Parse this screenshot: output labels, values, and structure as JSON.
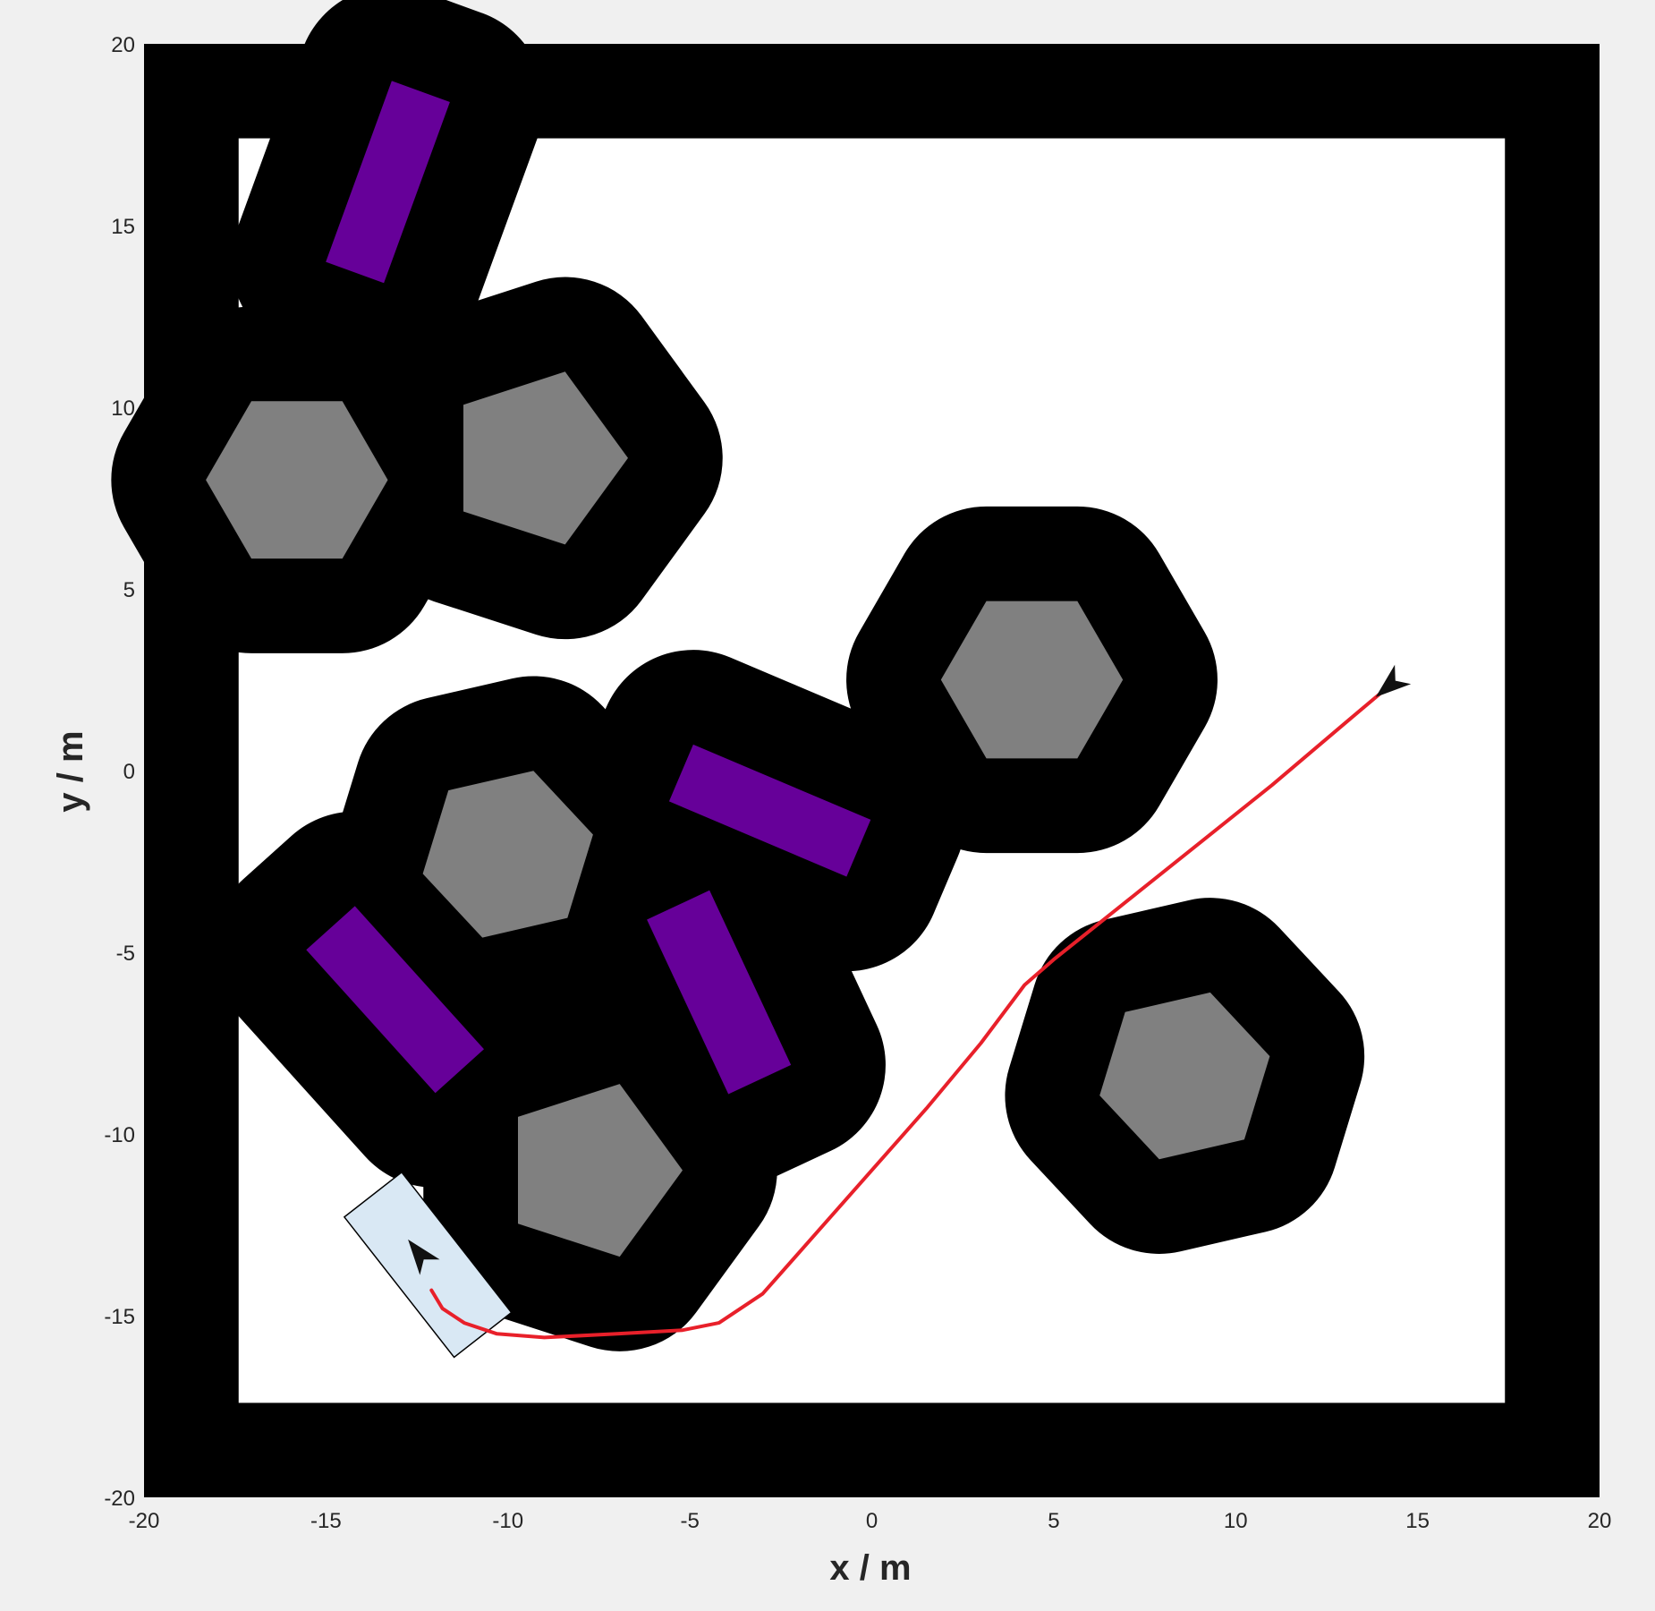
{
  "chart_data": {
    "type": "path-planning-map",
    "xlabel": "x / m",
    "ylabel": "y / m",
    "xlim": [
      -20,
      20
    ],
    "ylim": [
      -20,
      20
    ],
    "xticks": [
      -20,
      -15,
      -10,
      -5,
      0,
      5,
      10,
      15,
      20
    ],
    "yticks": [
      -20,
      -15,
      -10,
      -5,
      0,
      5,
      10,
      15,
      20
    ],
    "grid": false,
    "colors": {
      "inflated": "#000000",
      "polygon_obstacle": "#808080",
      "rect_obstacle": "#660099",
      "path": "#e8202a",
      "vehicle_fill": "#d9e8f4",
      "free_space": "#ffffff",
      "figure_bg": "#f0f0f0"
    },
    "walls": {
      "outer": [
        -20,
        20,
        -20,
        20
      ],
      "inner_free": [
        -17.4,
        17.4,
        -17.4,
        17.4
      ]
    },
    "hexagons": [
      {
        "cx": -15.8,
        "cy": 8.0,
        "r": 2.5,
        "rot": 0
      },
      {
        "cx": 4.4,
        "cy": 2.5,
        "r": 2.5,
        "rot": 0
      },
      {
        "cx": -10.0,
        "cy": -2.3,
        "r": 2.4,
        "rot": 13
      },
      {
        "cx": 8.6,
        "cy": -8.4,
        "r": 2.4,
        "rot": 13
      }
    ],
    "pentagons": [
      {
        "cx": -9.2,
        "cy": 8.6,
        "r": 2.5,
        "rot": 0
      },
      {
        "cx": -7.7,
        "cy": -11.0,
        "r": 2.5,
        "rot": 0
      }
    ],
    "rectangles": [
      {
        "cx": -13.3,
        "cy": 16.2,
        "w": 1.7,
        "h": 5.3,
        "angle": -20
      },
      {
        "cx": -2.8,
        "cy": -1.1,
        "w": 5.3,
        "h": 1.7,
        "angle": -23
      },
      {
        "cx": -13.1,
        "cy": -6.3,
        "w": 1.8,
        "h": 5.3,
        "angle": 42
      },
      {
        "cx": -4.2,
        "cy": -6.1,
        "w": 1.9,
        "h": 5.3,
        "angle": 25
      }
    ],
    "inflation_radius": 2.6,
    "path": {
      "x": [
        14.3,
        13.0,
        11.0,
        9.0,
        7.0,
        5.0,
        4.2,
        3.0,
        1.5,
        0.0,
        -1.5,
        -3.0,
        -4.2,
        -5.2,
        -7.0,
        -9.0,
        -10.3,
        -11.2,
        -11.8,
        -12.1
      ],
      "y": [
        2.4,
        1.3,
        -0.4,
        -2.0,
        -3.6,
        -5.2,
        -5.9,
        -7.5,
        -9.3,
        -11.0,
        -12.7,
        -14.4,
        -15.2,
        -15.4,
        -15.5,
        -15.6,
        -15.5,
        -15.2,
        -14.8,
        -14.3
      ]
    },
    "goal": {
      "x": 14.3,
      "y": 2.4,
      "heading_deg": 220
    },
    "vehicle": {
      "x": -12.2,
      "y": -13.6,
      "heading_deg": 128,
      "length": 4.9,
      "width": 2.0
    }
  }
}
